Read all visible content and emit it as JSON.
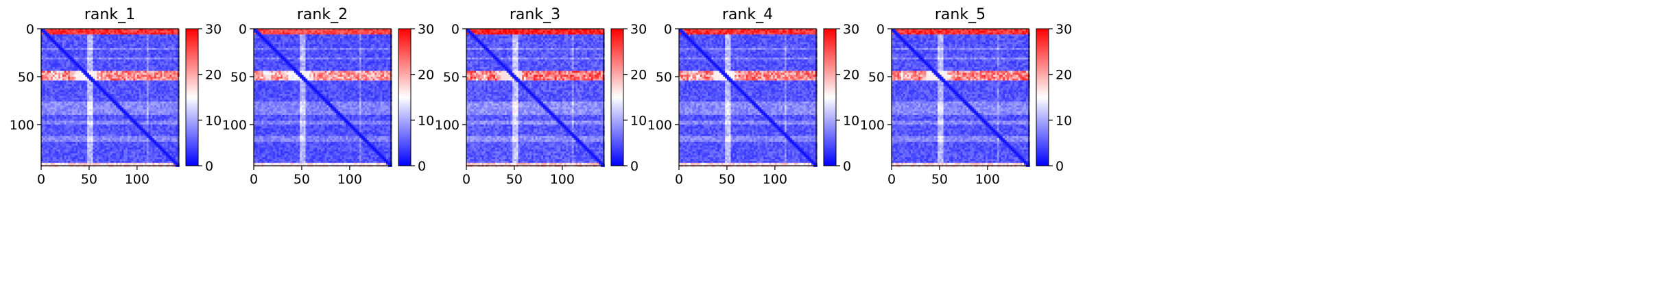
{
  "chart_data": [
    {
      "type": "heatmap",
      "title": "rank_1",
      "x_ticks": [
        0,
        50,
        100
      ],
      "y_ticks": [
        0,
        50,
        100
      ],
      "xlim": [
        0,
        143
      ],
      "ylim": [
        143,
        0
      ],
      "colorbar": {
        "ticks": [
          0,
          10,
          20,
          30
        ],
        "range": [
          0,
          30
        ],
        "colormap": [
          "#0000ff",
          "#ffffff",
          "#ff0000"
        ]
      },
      "features": {
        "size": 143,
        "hot_band_rows": [
          0,
          5
        ],
        "hot_band_rows_2": [
          44,
          52
        ],
        "light_column": 50,
        "dark_diagonal": true,
        "bottom_hot_rows": [
          139,
          143
        ],
        "intensity": 1.0
      }
    },
    {
      "type": "heatmap",
      "title": "rank_2",
      "x_ticks": [
        0,
        50,
        100
      ],
      "y_ticks": [
        0,
        50,
        100
      ],
      "xlim": [
        0,
        143
      ],
      "ylim": [
        143,
        0
      ],
      "colorbar": {
        "ticks": [
          0,
          10,
          20,
          30
        ],
        "range": [
          0,
          30
        ],
        "colormap": [
          "#0000ff",
          "#ffffff",
          "#ff0000"
        ]
      },
      "features": {
        "size": 143,
        "hot_band_rows": [
          0,
          5
        ],
        "hot_band_rows_2": [
          44,
          52
        ],
        "light_column": 50,
        "dark_diagonal": true,
        "bottom_hot_rows": [
          139,
          143
        ],
        "intensity": 0.95
      }
    },
    {
      "type": "heatmap",
      "title": "rank_3",
      "x_ticks": [
        0,
        50,
        100
      ],
      "y_ticks": [
        0,
        50,
        100
      ],
      "xlim": [
        0,
        143
      ],
      "ylim": [
        143,
        0
      ],
      "colorbar": {
        "ticks": [
          0,
          10,
          20,
          30
        ],
        "range": [
          0,
          30
        ],
        "colormap": [
          "#0000ff",
          "#ffffff",
          "#ff0000"
        ]
      },
      "features": {
        "size": 143,
        "hot_band_rows": [
          0,
          5
        ],
        "hot_band_rows_2": [
          44,
          52
        ],
        "light_column": 50,
        "dark_diagonal": true,
        "bottom_hot_rows": [
          139,
          143
        ],
        "intensity": 1.05
      }
    },
    {
      "type": "heatmap",
      "title": "rank_4",
      "x_ticks": [
        0,
        50,
        100
      ],
      "y_ticks": [
        0,
        50,
        100
      ],
      "xlim": [
        0,
        143
      ],
      "ylim": [
        143,
        0
      ],
      "colorbar": {
        "ticks": [
          0,
          10,
          20,
          30
        ],
        "range": [
          0,
          30
        ],
        "colormap": [
          "#0000ff",
          "#ffffff",
          "#ff0000"
        ]
      },
      "features": {
        "size": 143,
        "hot_band_rows": [
          0,
          5
        ],
        "hot_band_rows_2": [
          44,
          52
        ],
        "light_column": 50,
        "dark_diagonal": true,
        "bottom_hot_rows": [
          139,
          143
        ],
        "intensity": 1.0
      }
    },
    {
      "type": "heatmap",
      "title": "rank_5",
      "x_ticks": [
        0,
        50,
        100
      ],
      "y_ticks": [
        0,
        50,
        100
      ],
      "xlim": [
        0,
        143
      ],
      "ylim": [
        143,
        0
      ],
      "colorbar": {
        "ticks": [
          0,
          10,
          20,
          30
        ],
        "range": [
          0,
          30
        ],
        "colormap": [
          "#0000ff",
          "#ffffff",
          "#ff0000"
        ]
      },
      "features": {
        "size": 143,
        "hot_band_rows": [
          0,
          5
        ],
        "hot_band_rows_2": [
          44,
          52
        ],
        "light_column": 50,
        "dark_diagonal": true,
        "bottom_hot_rows": [
          139,
          143
        ],
        "intensity": 1.0
      }
    }
  ]
}
